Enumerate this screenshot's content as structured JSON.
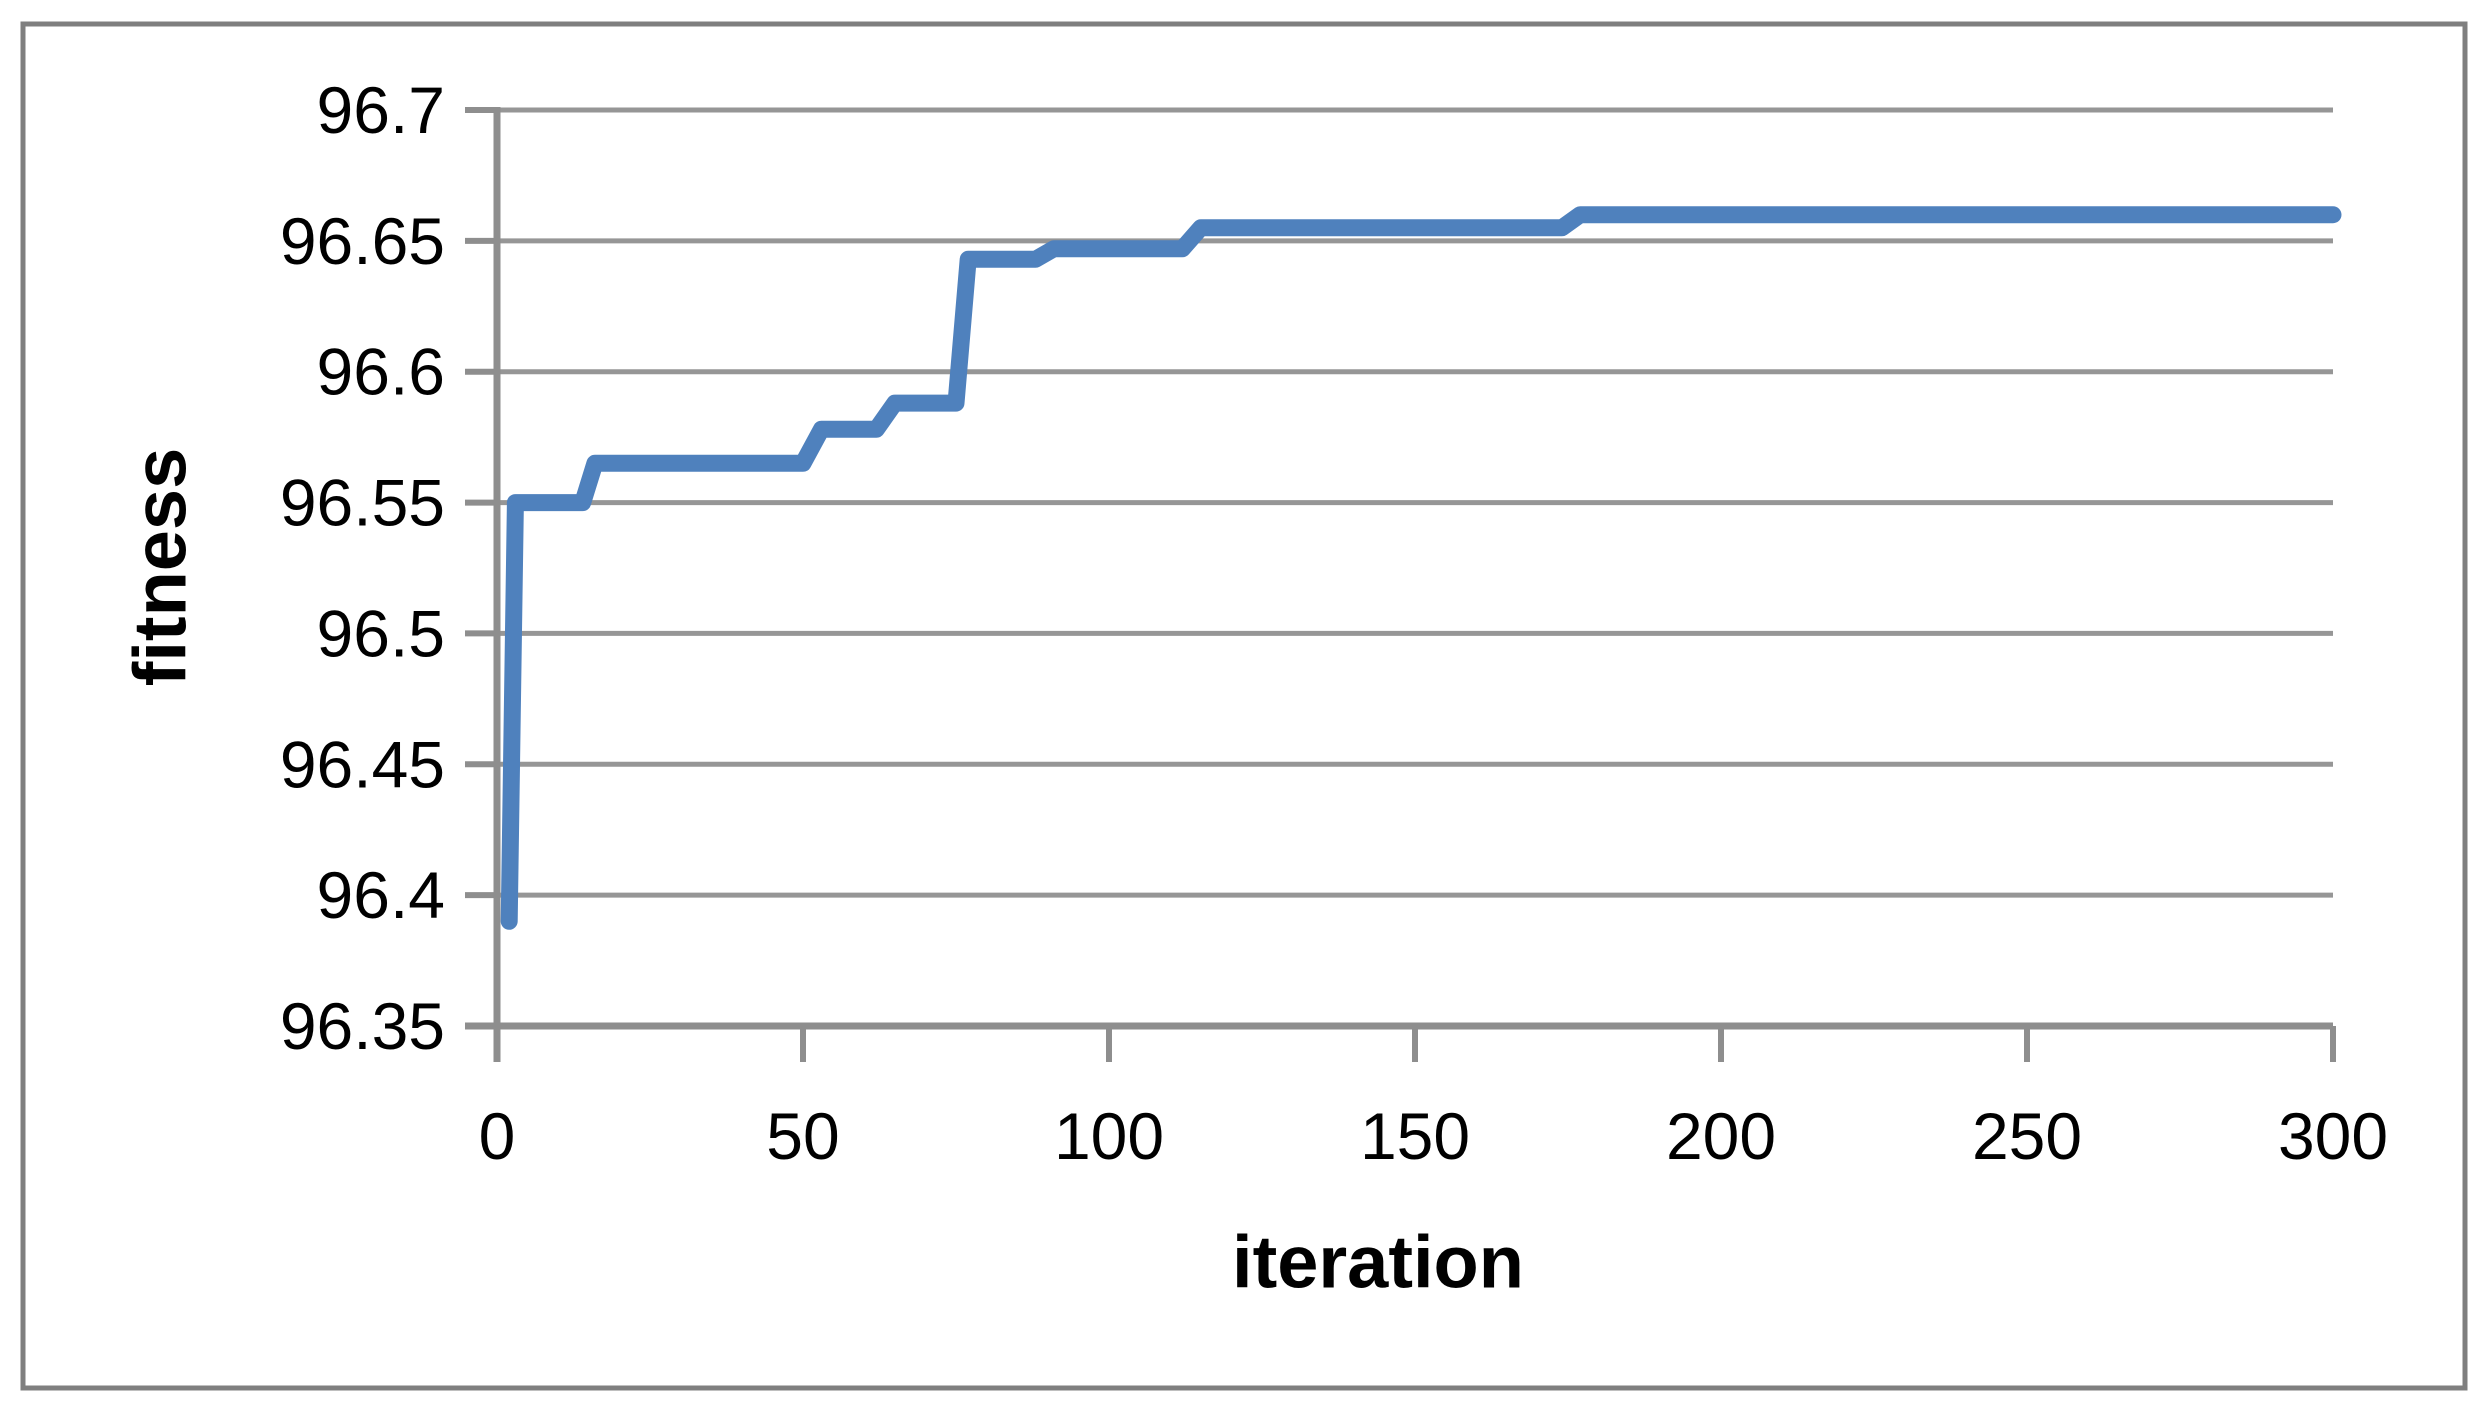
{
  "figure": {
    "background": "#ffffff",
    "border_color": "#7f7f7f"
  },
  "chart_data": {
    "type": "line",
    "title": "",
    "xlabel": "iteration",
    "ylabel": "fitness",
    "xlim": [
      0,
      300
    ],
    "ylim": [
      96.35,
      96.7
    ],
    "x_ticks": [
      "0",
      "50",
      "100",
      "150",
      "200",
      "250",
      "300"
    ],
    "y_ticks": [
      "96.35",
      "96.4",
      "96.45",
      "96.5",
      "96.55",
      "96.6",
      "96.65",
      "96.7"
    ],
    "grid": "horizontal",
    "legend": "none",
    "line_color": "#4f81bd",
    "axis_color": "#8e8e8e",
    "gridline_color": "#969696",
    "series": [
      {
        "name": "fitness",
        "points": [
          [
            2,
            96.39
          ],
          [
            3,
            96.55
          ],
          [
            14,
            96.55
          ],
          [
            16,
            96.565
          ],
          [
            50,
            96.565
          ],
          [
            53,
            96.578
          ],
          [
            62,
            96.578
          ],
          [
            65,
            96.588
          ],
          [
            75,
            96.588
          ],
          [
            77,
            96.643
          ],
          [
            88,
            96.643
          ],
          [
            91,
            96.647
          ],
          [
            112,
            96.647
          ],
          [
            115,
            96.655
          ],
          [
            174,
            96.655
          ],
          [
            177,
            96.66
          ],
          [
            300,
            96.66
          ]
        ]
      }
    ]
  }
}
